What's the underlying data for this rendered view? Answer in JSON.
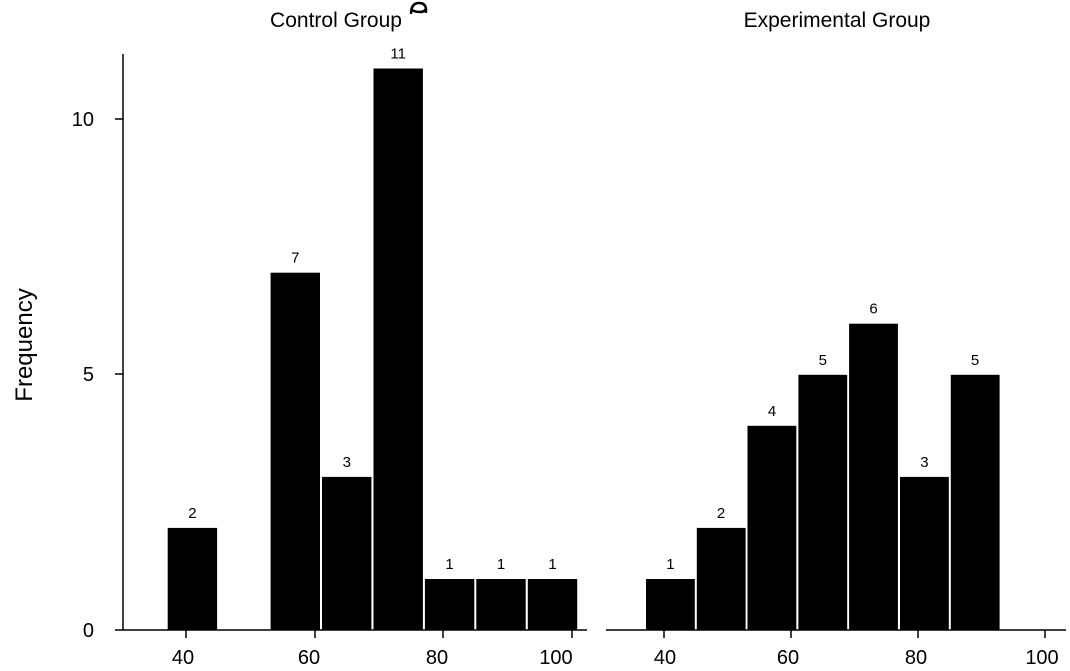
{
  "colors": {
    "bar": "#000000",
    "axis": "#000000",
    "background": "#ffffff"
  },
  "y_axis": {
    "label": "Frequency",
    "ticks": [
      0,
      5,
      10
    ]
  },
  "chart_data": [
    {
      "type": "bar",
      "title": "Control Group",
      "ylabel": "Frequency",
      "ylim": [
        0,
        11
      ],
      "xlim": [
        35,
        102
      ],
      "x_ticks": [
        40,
        60,
        80,
        100
      ],
      "bins": [
        {
          "x0": 37,
          "x1": 45,
          "value": 2
        },
        {
          "x0": 53,
          "x1": 61,
          "value": 7
        },
        {
          "x0": 61,
          "x1": 69,
          "value": 3
        },
        {
          "x0": 69,
          "x1": 77,
          "value": 11
        },
        {
          "x0": 77,
          "x1": 85,
          "value": 1
        },
        {
          "x0": 85,
          "x1": 93,
          "value": 1
        },
        {
          "x0": 93,
          "x1": 101,
          "value": 1
        }
      ]
    },
    {
      "type": "bar",
      "title": "Experimental Group",
      "ylim": [
        0,
        11
      ],
      "xlim": [
        37,
        103
      ],
      "x_ticks": [
        40,
        60,
        80,
        100
      ],
      "bins": [
        {
          "x0": 37,
          "x1": 45,
          "value": 1
        },
        {
          "x0": 45,
          "x1": 53,
          "value": 2
        },
        {
          "x0": 53,
          "x1": 61,
          "value": 4
        },
        {
          "x0": 61,
          "x1": 69,
          "value": 5
        },
        {
          "x0": 69,
          "x1": 77,
          "value": 6
        },
        {
          "x0": 77,
          "x1": 85,
          "value": 3
        },
        {
          "x0": 85,
          "x1": 93,
          "value": 5
        }
      ]
    }
  ]
}
